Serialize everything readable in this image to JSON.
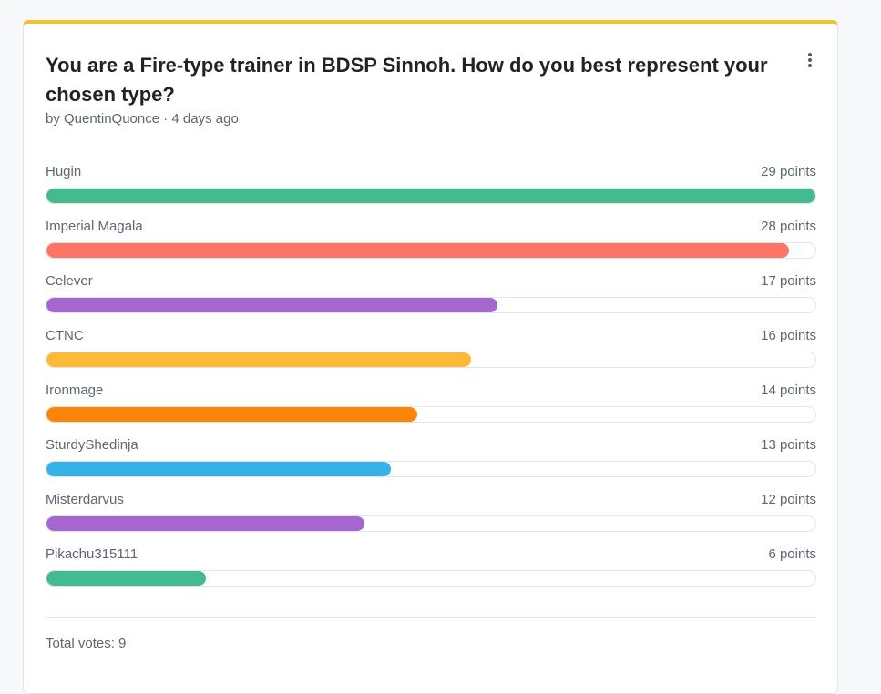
{
  "poll": {
    "title": "You are a Fire-type trainer in BDSP Sinnoh. How do you best represent your chosen type?",
    "byline": "by QuentinQuonce · 4 days ago",
    "total_votes": "Total votes: 9",
    "accent_color": "#f1c232",
    "menu_icon": "more-vertical-icon",
    "options": [
      {
        "name": "Hugin",
        "points_label": "29 points",
        "points": 29,
        "color": "#43bb8f"
      },
      {
        "name": "Imperial Magala",
        "points_label": "28 points",
        "points": 28,
        "color": "#ff7464"
      },
      {
        "name": "Celever",
        "points_label": "17 points",
        "points": 17,
        "color": "#a566d0"
      },
      {
        "name": "CTNC",
        "points_label": "16 points",
        "points": 16,
        "color": "#ffb934"
      },
      {
        "name": "Ironmage",
        "points_label": "14 points",
        "points": 14,
        "color": "#ff8508"
      },
      {
        "name": "SturdyShedinja",
        "points_label": "13 points",
        "points": 13,
        "color": "#35b3e6"
      },
      {
        "name": "Misterdarvus",
        "points_label": "12 points",
        "points": 12,
        "color": "#a566d0"
      },
      {
        "name": "Pikachu315111",
        "points_label": "6 points",
        "points": 6,
        "color": "#43bb8f"
      }
    ]
  }
}
